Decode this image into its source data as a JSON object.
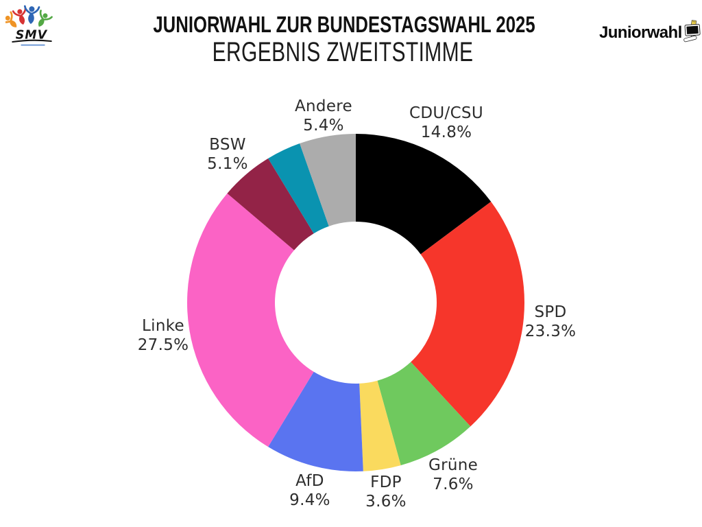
{
  "header": {
    "title": "JUNIORWAHL ZUR BUNDESTAGSWAHL 2025",
    "subtitle": "ERGEBNIS ZWEITSTIMME"
  },
  "logos": {
    "smv": {
      "text": "SMV"
    },
    "juniorwahl": {
      "text": "Juniorwahl"
    }
  },
  "chart_data": {
    "type": "pie",
    "variant": "donut",
    "title": "Ergebnis Zweitstimme — Juniorwahl zur Bundestagswahl 2025",
    "unit": "%",
    "direction": "clockwise",
    "start_angle_deg": 0,
    "inner_radius_ratio": 0.48,
    "legend_position": "outside-labels",
    "segments": [
      {
        "label": "CDU/CSU",
        "value": 14.8,
        "value_label": "14.8%",
        "color": "#000000"
      },
      {
        "label": "SPD",
        "value": 23.3,
        "value_label": "23.3%",
        "color": "#F6362B"
      },
      {
        "label": "Grüne",
        "value": 7.6,
        "value_label": "7.6%",
        "color": "#6FC95E"
      },
      {
        "label": "FDP",
        "value": 3.6,
        "value_label": "3.6%",
        "color": "#FADA5E"
      },
      {
        "label": "AfD",
        "value": 9.4,
        "value_label": "9.4%",
        "color": "#5A74F0"
      },
      {
        "label": "Linke",
        "value": 27.5,
        "value_label": "27.5%",
        "color": "#FB63C5"
      },
      {
        "label": "BSW",
        "value": 5.1,
        "value_label": "5.1%",
        "color": "#932347"
      },
      {
        "label": "",
        "value": 3.3,
        "value_label": "",
        "color": "#0A93B0",
        "note": "unlabeled teal segment, share estimated from arc length"
      },
      {
        "label": "Andere",
        "value": 5.4,
        "value_label": "5.4%",
        "color": "#ACACAC"
      }
    ]
  }
}
